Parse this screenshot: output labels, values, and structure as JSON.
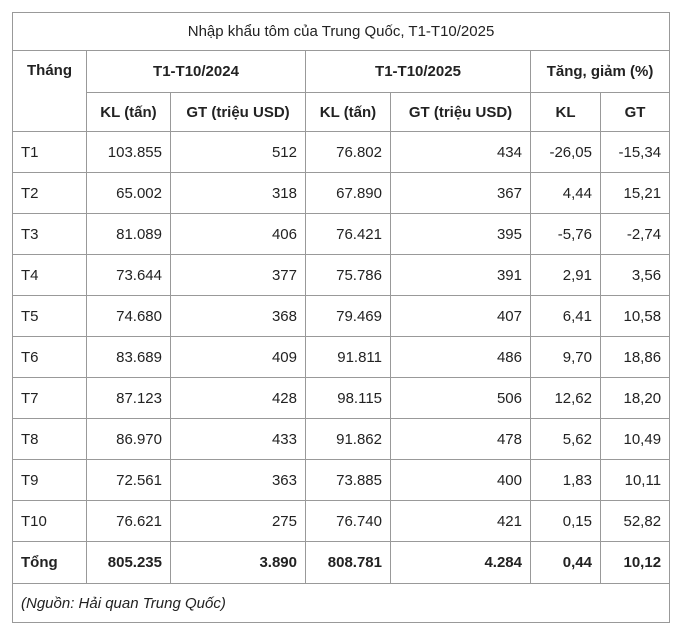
{
  "title": "Nhập khẩu tôm của Trung Quốc, T1-T10/2025",
  "header": {
    "row1": [
      "Tháng",
      "T1-T10/2024",
      "T1-T10/2025",
      "Tăng, giảm (%)"
    ],
    "row2": [
      "KL (tấn)",
      "GT (triệu USD)",
      "KL (tấn)",
      "GT (triệu USD)",
      "KL",
      "GT"
    ]
  },
  "table": {
    "rows": [
      [
        "T1",
        "103.855",
        "512",
        "76.802",
        "434",
        "-26,05",
        "-15,34"
      ],
      [
        "T2",
        "65.002",
        "318",
        "67.890",
        "367",
        "4,44",
        "15,21"
      ],
      [
        "T3",
        "81.089",
        "406",
        "76.421",
        "395",
        "-5,76",
        "-2,74"
      ],
      [
        "T4",
        "73.644",
        "377",
        "75.786",
        "391",
        "2,91",
        "3,56"
      ],
      [
        "T5",
        "74.680",
        "368",
        "79.469",
        "407",
        "6,41",
        "10,58"
      ],
      [
        "T6",
        "83.689",
        "409",
        "91.811",
        "486",
        "9,70",
        "18,86"
      ],
      [
        "T7",
        "87.123",
        "428",
        "98.115",
        "506",
        "12,62",
        "18,20"
      ],
      [
        "T8",
        "86.970",
        "433",
        "91.862",
        "478",
        "5,62",
        "10,49"
      ],
      [
        "T9",
        "72.561",
        "363",
        "73.885",
        "400",
        "1,83",
        "10,11"
      ],
      [
        "T10",
        "76.621",
        "275",
        "76.740",
        "421",
        "0,15",
        "52,82"
      ]
    ],
    "total": [
      "Tổng",
      "805.235",
      "3.890",
      "808.781",
      "4.284",
      "0,44",
      "10,12"
    ]
  },
  "source": "(Nguồn: Hải quan Trung Quốc)"
}
